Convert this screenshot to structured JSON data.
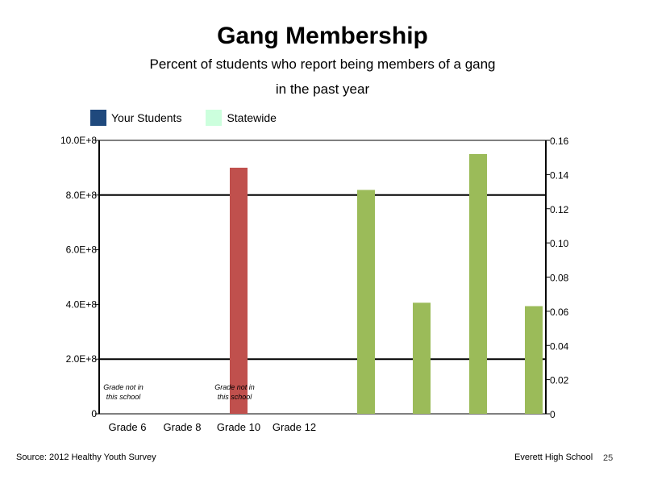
{
  "title": "Gang Membership",
  "subtitle_line1": "Percent of students who report being members of a gang",
  "subtitle_line2": "in the past year",
  "legend": [
    {
      "label": "Your Students",
      "color": "#1F497D"
    },
    {
      "label": "Statewide",
      "color": "#CCFFDD"
    }
  ],
  "footer": {
    "source": "Source: 2012 Healthy Youth Survey",
    "school": "Everett High School",
    "page_number": "25"
  },
  "chart_data": {
    "type": "bar",
    "title": "Gang Membership",
    "subtitle": "Percent of students who report being members of a gang in the past year",
    "categories": [
      "Grade 6",
      "Grade 8",
      "Grade 10",
      "Grade 12"
    ],
    "left_axis": {
      "ylim": [
        0,
        1000000000
      ],
      "ticks": [
        0,
        200000000,
        400000000,
        600000000,
        800000000,
        1000000000
      ],
      "tick_labels": [
        "0",
        "2.0E+8",
        "4.0E+8",
        "6.0E+8",
        "8.0E+8",
        "10.0E+8"
      ]
    },
    "right_axis": {
      "ylim": [
        0,
        0.16
      ],
      "ticks": [
        0,
        0.02,
        0.04,
        0.06,
        0.08,
        0.1,
        0.12,
        0.14,
        0.16
      ],
      "tick_labels": [
        "0",
        "0.02",
        "0.04",
        "0.06",
        "0.08",
        "0.10",
        "0.12",
        "0.14",
        "0.16"
      ]
    },
    "bar_series": [
      {
        "category": "Grade 10",
        "axis": "left",
        "value": 900000000,
        "color": "#C0504D"
      },
      {
        "axis": "right",
        "value": 0.131,
        "color": "#9BBB59"
      },
      {
        "axis": "right",
        "value": 0.065,
        "color": "#9BBB59"
      },
      {
        "axis": "right",
        "value": 0.152,
        "color": "#9BBB59"
      },
      {
        "axis": "right",
        "value": 0.063,
        "color": "#9BBB59"
      }
    ],
    "annotations": [
      {
        "category": "Grade 6",
        "text_line1": "Grade not in",
        "text_line2": "this school"
      },
      {
        "category": "Grade 10",
        "text_line1": "Grade not in",
        "text_line2": "this school"
      }
    ],
    "gridlines": [
      200000000,
      800000000
    ],
    "grid": true
  }
}
